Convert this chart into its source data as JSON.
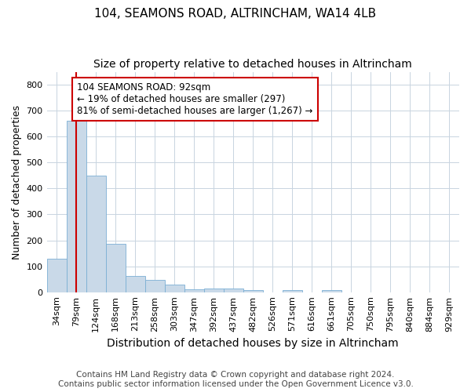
{
  "title": "104, SEAMONS ROAD, ALTRINCHAM, WA14 4LB",
  "subtitle": "Size of property relative to detached houses in Altrincham",
  "xlabel": "Distribution of detached houses by size in Altrincham",
  "ylabel": "Number of detached properties",
  "footer_line1": "Contains HM Land Registry data © Crown copyright and database right 2024.",
  "footer_line2": "Contains public sector information licensed under the Open Government Licence v3.0.",
  "categories": [
    "34sqm",
    "79sqm",
    "124sqm",
    "168sqm",
    "213sqm",
    "258sqm",
    "303sqm",
    "347sqm",
    "392sqm",
    "437sqm",
    "482sqm",
    "526sqm",
    "571sqm",
    "616sqm",
    "661sqm",
    "705sqm",
    "750sqm",
    "795sqm",
    "840sqm",
    "884sqm",
    "929sqm"
  ],
  "values": [
    128,
    660,
    450,
    185,
    62,
    47,
    28,
    10,
    13,
    13,
    7,
    0,
    7,
    0,
    7,
    0,
    0,
    0,
    0,
    0,
    0
  ],
  "bar_color": "#c9d9e8",
  "bar_edge_color": "#7bafd4",
  "red_line_x": 1.0,
  "red_line_color": "#cc0000",
  "annotation_text": "104 SEAMONS ROAD: 92sqm\n← 19% of detached houses are smaller (297)\n81% of semi-detached houses are larger (1,267) →",
  "annotation_box_color": "#ffffff",
  "annotation_box_edge": "#cc0000",
  "ylim": [
    0,
    850
  ],
  "yticks": [
    0,
    100,
    200,
    300,
    400,
    500,
    600,
    700,
    800
  ],
  "title_fontsize": 11,
  "subtitle_fontsize": 10,
  "xlabel_fontsize": 10,
  "ylabel_fontsize": 9,
  "tick_fontsize": 8,
  "annotation_fontsize": 8.5,
  "footer_fontsize": 7.5,
  "bg_color": "#ffffff",
  "grid_color": "#c8d4e0"
}
